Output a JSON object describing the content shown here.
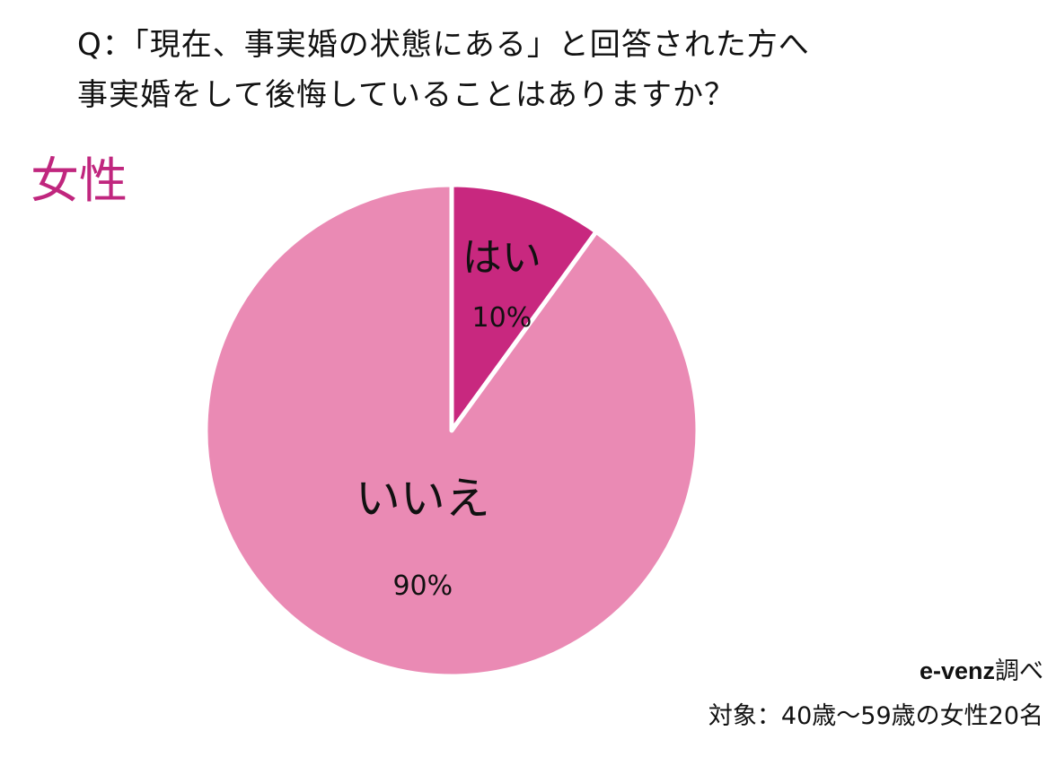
{
  "question": {
    "line1": "Q：「現在、事実婚の状態にある」と回答された方へ",
    "line2": "事実婚をして後悔していることはありますか？"
  },
  "segment": {
    "label": "女性",
    "color": "#c0267e"
  },
  "chart_data": {
    "type": "pie",
    "categories": [
      "はい",
      "いいえ"
    ],
    "values": [
      10,
      90
    ],
    "value_labels": [
      "10%",
      "90%"
    ],
    "colors": [
      "#c8287f",
      "#ea8ab4"
    ],
    "start_angle_deg": 0,
    "direction": "clockwise",
    "labels_inside": true,
    "title": "",
    "legend": "none"
  },
  "credit": {
    "brand": "e-venz",
    "suffix": "調べ",
    "sample": "対象：40歳〜59歳の女性20名"
  }
}
